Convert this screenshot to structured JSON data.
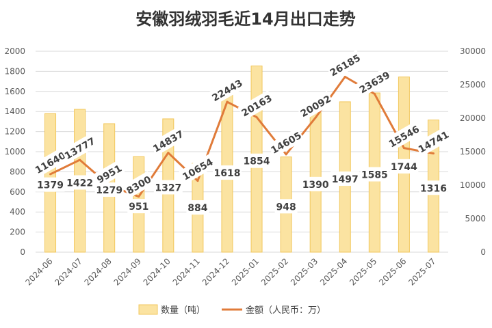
{
  "chart_data": {
    "type": "bar+line",
    "title": "安徽羽绒羽毛近14月出口走势",
    "categories": [
      "2024-06",
      "2024-07",
      "2024-08",
      "2024-09",
      "2024-10",
      "2024-11",
      "2024-12",
      "2025-01",
      "2025-02",
      "2025-03",
      "2025-04",
      "2025-05",
      "2025-06",
      "2025-07"
    ],
    "series": [
      {
        "name": "数量（吨）",
        "type": "bar",
        "axis": "left",
        "values": [
          1379,
          1422,
          1279,
          951,
          1327,
          884,
          1618,
          1854,
          948,
          1390,
          1497,
          1585,
          1744,
          1316
        ]
      },
      {
        "name": "金额（人民币：万）",
        "type": "line",
        "axis": "right",
        "values": [
          11640,
          13777,
          9951,
          8300,
          14837,
          10654,
          22443,
          20163,
          14605,
          20092,
          26185,
          23639,
          15546,
          14741
        ]
      }
    ],
    "y_left": {
      "min": 0,
      "max": 2000,
      "ticks": [
        0,
        200,
        400,
        600,
        800,
        1000,
        1200,
        1400,
        1600,
        1800,
        2000
      ]
    },
    "y_right": {
      "min": 0,
      "max": 30000,
      "ticks": [
        0,
        5000,
        10000,
        15000,
        20000,
        25000,
        30000
      ]
    },
    "grid": true,
    "legend": "bottom",
    "colors": {
      "bar_fill": "#FBE3A1",
      "bar_stroke": "#F2C75C",
      "line": "#E07B39",
      "grid": "#D9D9D9",
      "label_bg": "#ffffff"
    }
  }
}
